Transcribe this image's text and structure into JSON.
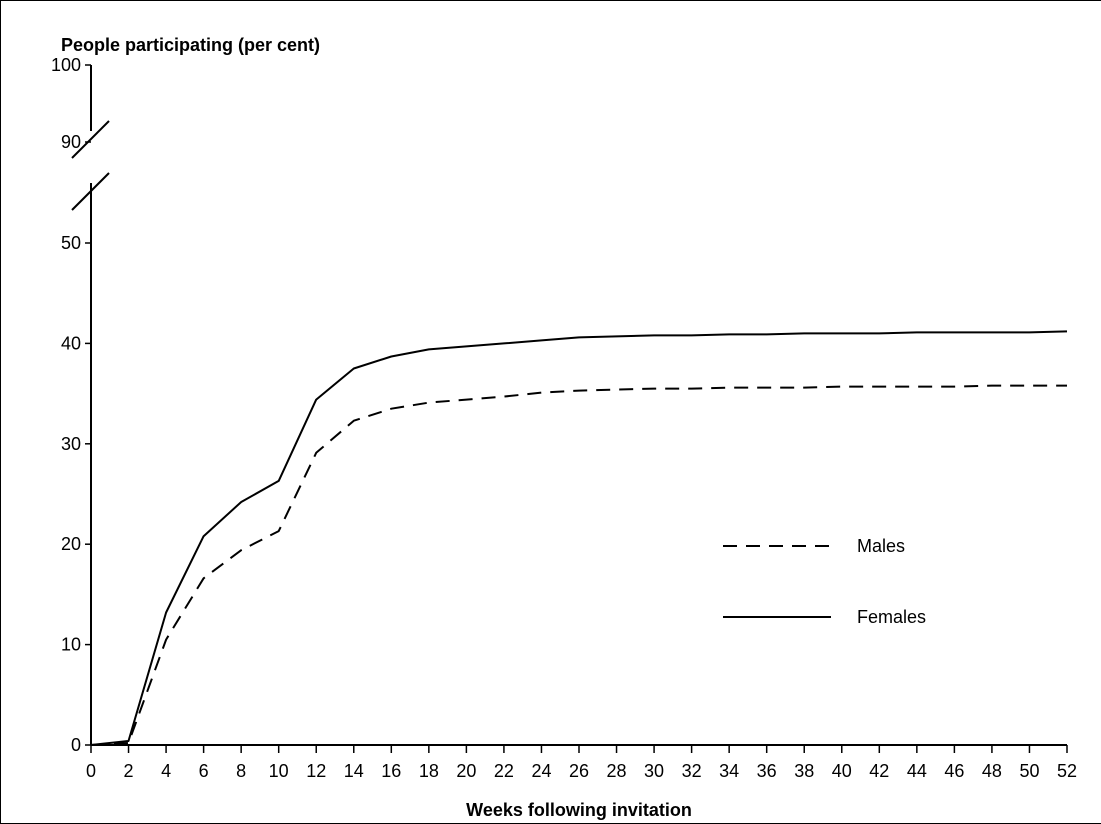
{
  "chart_data": {
    "type": "line",
    "title": "",
    "ylabel": "People participating (per cent)",
    "xlabel": "Weeks following invitation",
    "x": [
      0,
      2,
      4,
      6,
      8,
      10,
      12,
      14,
      16,
      18,
      20,
      22,
      24,
      26,
      28,
      30,
      32,
      34,
      36,
      38,
      40,
      42,
      44,
      46,
      48,
      50,
      52
    ],
    "xlim": [
      0,
      52
    ],
    "ylim": [
      0,
      100
    ],
    "axis_break": [
      50,
      90
    ],
    "y_ticks": [
      0,
      10,
      20,
      30,
      40,
      50,
      90,
      100
    ],
    "grid": false,
    "legend_position": "right",
    "series": [
      {
        "name": "Males",
        "style": "dashed",
        "color": "#000000",
        "values": [
          0,
          0.2,
          10.5,
          16.6,
          19.4,
          21.3,
          29.1,
          32.3,
          33.5,
          34.1,
          34.4,
          34.7,
          35.1,
          35.3,
          35.4,
          35.5,
          35.5,
          35.6,
          35.6,
          35.6,
          35.7,
          35.7,
          35.7,
          35.7,
          35.8,
          35.8,
          35.8
        ]
      },
      {
        "name": "Females",
        "style": "solid",
        "color": "#000000",
        "values": [
          0,
          0.4,
          13.2,
          20.8,
          24.2,
          26.3,
          34.4,
          37.5,
          38.7,
          39.4,
          39.7,
          40.0,
          40.3,
          40.6,
          40.7,
          40.8,
          40.8,
          40.9,
          40.9,
          41.0,
          41.0,
          41.0,
          41.1,
          41.1,
          41.1,
          41.1,
          41.2
        ]
      }
    ]
  }
}
